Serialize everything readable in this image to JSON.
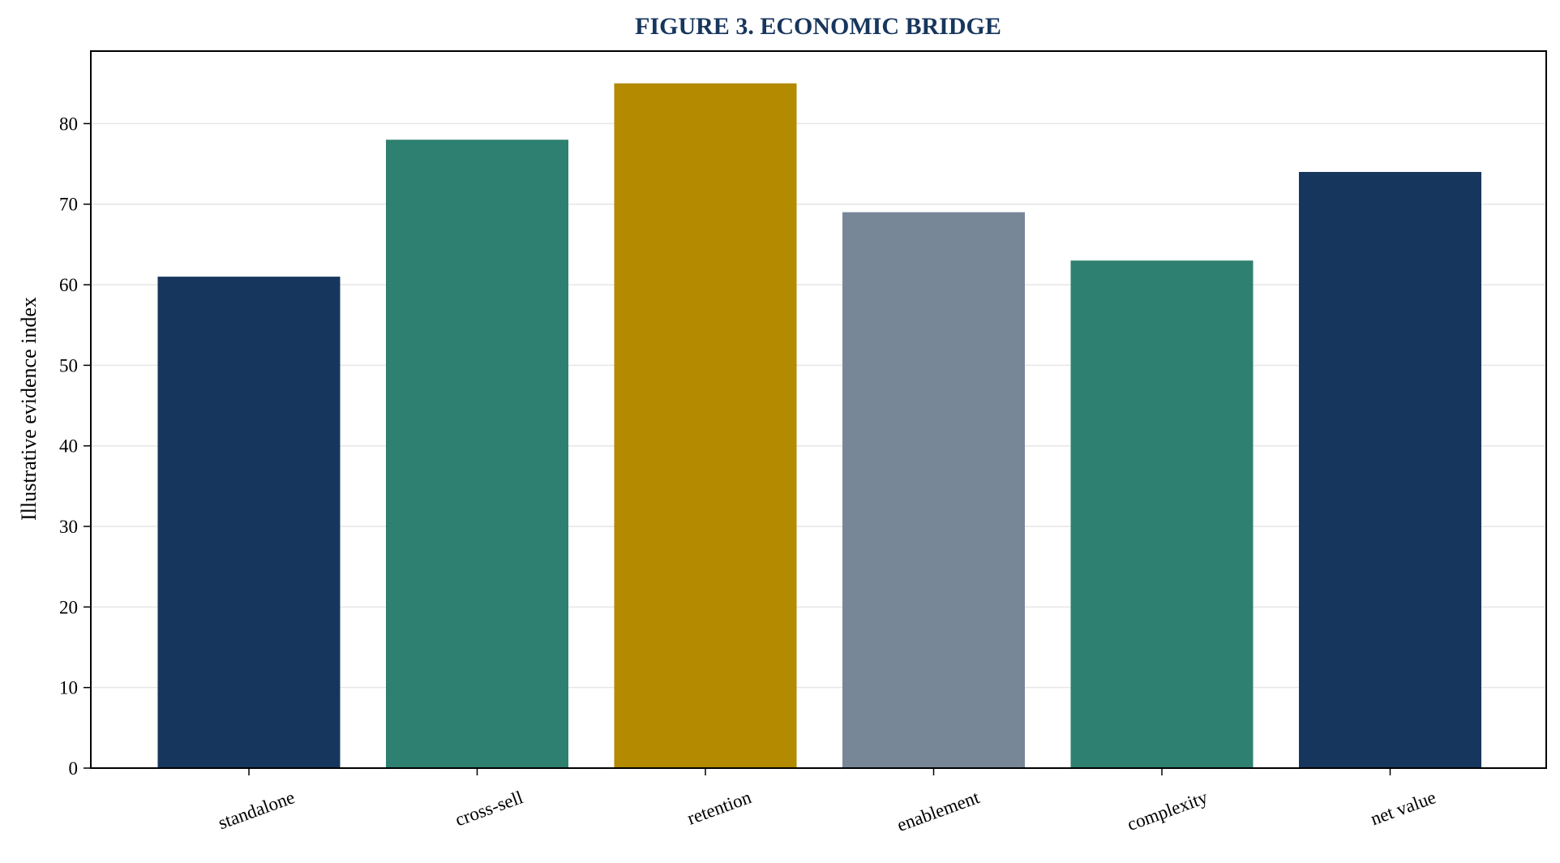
{
  "chart_data": {
    "type": "bar",
    "title": "FIGURE 3. ECONOMIC BRIDGE",
    "xlabel": "",
    "ylabel": "Illustrative evidence index",
    "categories": [
      "standalone",
      "cross-sell",
      "retention",
      "enablement",
      "complexity",
      "net value"
    ],
    "values": [
      61,
      78,
      85,
      69,
      63,
      74
    ],
    "colors": [
      "#17365D",
      "#2E8070",
      "#B38A00",
      "#788797",
      "#2E8070",
      "#17365D"
    ],
    "ylim": [
      0,
      89
    ],
    "yticks": [
      0,
      10,
      20,
      30,
      40,
      50,
      60,
      70,
      80
    ],
    "grid": true,
    "title_color": "#17365D",
    "legend": "none"
  }
}
